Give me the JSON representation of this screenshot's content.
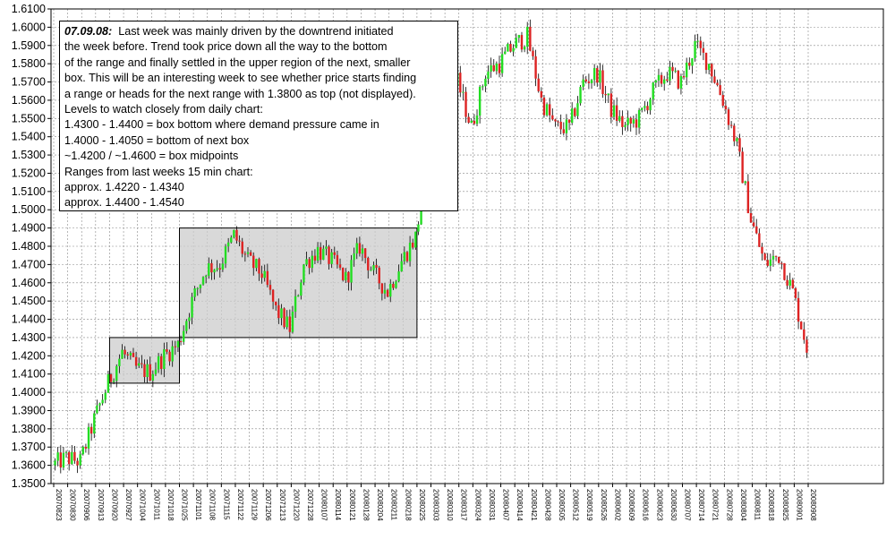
{
  "chart_data": {
    "type": "candlestick",
    "title": "",
    "xlabel": "",
    "ylabel": "",
    "ylim": [
      1.35,
      1.61
    ],
    "y_ticks": [
      "1.3500",
      "1.3600",
      "1.3700",
      "1.3800",
      "1.3900",
      "1.4000",
      "1.4100",
      "1.4200",
      "1.4300",
      "1.4400",
      "1.4500",
      "1.4600",
      "1.4700",
      "1.4800",
      "1.4900",
      "1.5000",
      "1.5100",
      "1.5200",
      "1.5300",
      "1.5400",
      "1.5500",
      "1.5600",
      "1.5700",
      "1.5800",
      "1.5900",
      "1.6000",
      "1.6100"
    ],
    "x_ticks": [
      "20070823",
      "20070830",
      "20070906",
      "20070913",
      "20070920",
      "20070927",
      "20071004",
      "20071011",
      "20071018",
      "20071025",
      "20071101",
      "20071108",
      "20071115",
      "20071122",
      "20071129",
      "20071206",
      "20071213",
      "20071220",
      "20071228",
      "20080107",
      "20080114",
      "20080121",
      "20080128",
      "20080204",
      "20080211",
      "20080218",
      "20080225",
      "20080303",
      "20080310",
      "20080317",
      "20080324",
      "20080331",
      "20080407",
      "20080414",
      "20080421",
      "20080428",
      "20080505",
      "20080512",
      "20080519",
      "20080526",
      "20080602",
      "20080609",
      "20080616",
      "20080623",
      "20080630",
      "20080707",
      "20080714",
      "20080721",
      "20080728",
      "20080804",
      "20080811",
      "20080818",
      "20080825",
      "20080901",
      "20080908"
    ],
    "grid": true,
    "price_path": [
      [
        "20070823",
        1.36
      ],
      [
        "20070830",
        1.364
      ],
      [
        "20070906",
        1.362
      ],
      [
        "20070913",
        1.385
      ],
      [
        "20070920",
        1.405
      ],
      [
        "20070927",
        1.422
      ],
      [
        "20071004",
        1.413
      ],
      [
        "20071011",
        1.411
      ],
      [
        "20071018",
        1.42
      ],
      [
        "20071025",
        1.426
      ],
      [
        "20071101",
        1.45
      ],
      [
        "20071108",
        1.468
      ],
      [
        "20071115",
        1.47
      ],
      [
        "20071122",
        1.486
      ],
      [
        "20071129",
        1.472
      ],
      [
        "20071206",
        1.465
      ],
      [
        "20071213",
        1.445
      ],
      [
        "20071220",
        1.435
      ],
      [
        "20071228",
        1.47
      ],
      [
        "20080107",
        1.478
      ],
      [
        "20080114",
        1.472
      ],
      [
        "20080121",
        1.462
      ],
      [
        "20080128",
        1.48
      ],
      [
        "20080204",
        1.465
      ],
      [
        "20080211",
        1.455
      ],
      [
        "20080218",
        1.472
      ],
      [
        "20080225",
        1.485
      ],
      [
        "20080303",
        1.53
      ],
      [
        "20080310",
        1.56
      ],
      [
        "20080317",
        1.57
      ],
      [
        "20080324",
        1.545
      ],
      [
        "20080331",
        1.575
      ],
      [
        "20080407",
        1.58
      ],
      [
        "20080414",
        1.59
      ],
      [
        "20080421",
        1.595
      ],
      [
        "20080428",
        1.56
      ],
      [
        "20080505",
        1.545
      ],
      [
        "20080512",
        1.545
      ],
      [
        "20080519",
        1.57
      ],
      [
        "20080526",
        1.575
      ],
      [
        "20080602",
        1.555
      ],
      [
        "20080609",
        1.545
      ],
      [
        "20080616",
        1.55
      ],
      [
        "20080623",
        1.565
      ],
      [
        "20080630",
        1.575
      ],
      [
        "20080707",
        1.57
      ],
      [
        "20080714",
        1.59
      ],
      [
        "20080721",
        1.58
      ],
      [
        "20080728",
        1.56
      ],
      [
        "20080804",
        1.535
      ],
      [
        "20080811",
        1.495
      ],
      [
        "20080818",
        1.47
      ],
      [
        "20080825",
        1.475
      ],
      [
        "20080901",
        1.455
      ],
      [
        "20080908",
        1.425
      ]
    ],
    "boxes": [
      {
        "x_start": "20070920",
        "x_end": "20071025",
        "y_low": 1.405,
        "y_high": 1.43
      },
      {
        "x_start": "20071025",
        "x_end": "20080225",
        "y_low": 1.43,
        "y_high": 1.49
      }
    ],
    "colors": {
      "up": "#22dd22",
      "down": "#dd2222",
      "wick": "#000000",
      "grid": "#888888",
      "box_fill": "#cccccc"
    }
  },
  "annotation": {
    "heading": "07.09.08:",
    "lines": [
      "Last week was mainly driven by the downtrend initiated",
      "the week before. Trend took price down all the way to the bottom",
      "of the range and finally settled in the upper region of the next, smaller",
      "box. This will be an interesting week to see whether price starts finding",
      "a range or heads for the next range with 1.3800 as top (not displayed).",
      "Levels to watch closely from daily chart:",
      "1.4300 - 1.4400 = box bottom where demand pressure came in",
      "1.4000 - 1.4050 = bottom of next box",
      "~1.4200 / ~1.4600 = box midpoints",
      "Ranges from last weeks 15 min chart:",
      "approx. 1.4220 - 1.4340",
      "approx. 1.4400 - 1.4540"
    ]
  }
}
